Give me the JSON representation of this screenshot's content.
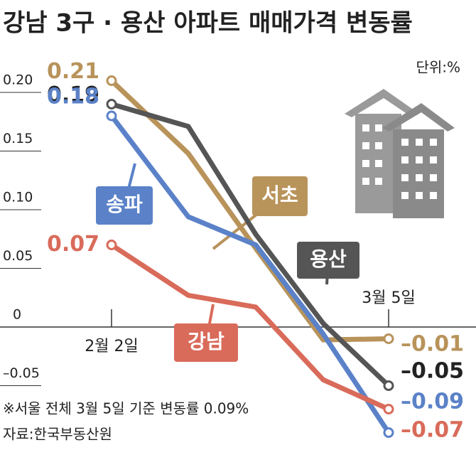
{
  "chart_data": {
    "type": "line",
    "title": "강남 3구 · 용산 아파트 매매가격 변동률",
    "unit": "단위:%",
    "note": "※서울 전체 3월 5일 기준 변동률 0.09%",
    "source": "자료:한국부동산원",
    "categories": [
      "2월 2일",
      null,
      null,
      null,
      "3월 5일"
    ],
    "ylim": [
      -0.1,
      0.22
    ],
    "yticks": [
      {
        "value": 0.2,
        "label": "0.20"
      },
      0.15,
      {
        "value": 0.1,
        "label": "0.10"
      },
      0.05,
      0,
      {
        "value": -0.05,
        "label": "–0.05"
      }
    ],
    "series": [
      {
        "name": "서초",
        "color": "#b8935a",
        "values": [
          0.21,
          0.148,
          0.067,
          -0.011,
          -0.01
        ],
        "value_labels": [
          "0.21",
          null,
          null,
          null,
          "–0.01"
        ]
      },
      {
        "name": "용산",
        "color": "#555555",
        "values": [
          0.19,
          0.171,
          0.079,
          0.003,
          -0.05
        ],
        "value_labels": [
          "0.19",
          null,
          null,
          null,
          "–0.05"
        ]
      },
      {
        "name": "송파",
        "color": "#5b82c8",
        "values": [
          0.18,
          0.094,
          0.07,
          -0.006,
          -0.09
        ],
        "value_labels": [
          "0.18",
          null,
          null,
          null,
          "–0.09"
        ]
      },
      {
        "name": "강남",
        "color": "#d96b5a",
        "values": [
          0.07,
          0.027,
          0.017,
          -0.045,
          -0.07
        ],
        "value_labels": [
          "0.07",
          null,
          null,
          null,
          "–0.07"
        ]
      }
    ]
  }
}
